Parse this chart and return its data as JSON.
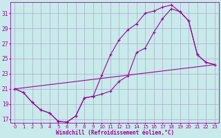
{
  "xlabel": "Windchill (Refroidissement éolien,°C)",
  "bg_color": "#c8eaea",
  "line_color": "#990099",
  "grid_color": "#aaaacc",
  "xlim": [
    -0.5,
    23.5
  ],
  "ylim": [
    16.5,
    32.5
  ],
  "xticks": [
    0,
    1,
    2,
    3,
    4,
    5,
    6,
    7,
    8,
    9,
    10,
    11,
    12,
    13,
    14,
    15,
    16,
    17,
    18,
    19,
    20,
    21,
    22,
    23
  ],
  "yticks": [
    17,
    19,
    21,
    23,
    25,
    27,
    29,
    31
  ],
  "line1_x": [
    0,
    1,
    2,
    3,
    4,
    5,
    6,
    7,
    8,
    9,
    10,
    11,
    12,
    13,
    14,
    15,
    16,
    17,
    18,
    19,
    20,
    21,
    22,
    23
  ],
  "line1_y": [
    21.0,
    20.5,
    19.2,
    18.2,
    17.8,
    16.7,
    16.6,
    17.4,
    19.8,
    20.0,
    20.3,
    20.7,
    22.0,
    22.7,
    25.8,
    26.4,
    28.5,
    30.3,
    31.6,
    31.2,
    30.0,
    25.5,
    24.5,
    24.2
  ],
  "line2_x": [
    0,
    1,
    2,
    3,
    4,
    5,
    6,
    7,
    8,
    9,
    10,
    11,
    12,
    13,
    14,
    15,
    16,
    17,
    18,
    19,
    20,
    21,
    22,
    23
  ],
  "line2_y": [
    21.0,
    20.5,
    19.2,
    18.2,
    17.8,
    16.7,
    16.6,
    17.4,
    19.8,
    20.0,
    22.8,
    25.5,
    27.5,
    28.8,
    29.6,
    31.0,
    31.3,
    31.8,
    32.1,
    31.2,
    30.0,
    25.5,
    24.5,
    24.2
  ],
  "line3_x": [
    0,
    23
  ],
  "line3_y": [
    21.0,
    24.2
  ]
}
